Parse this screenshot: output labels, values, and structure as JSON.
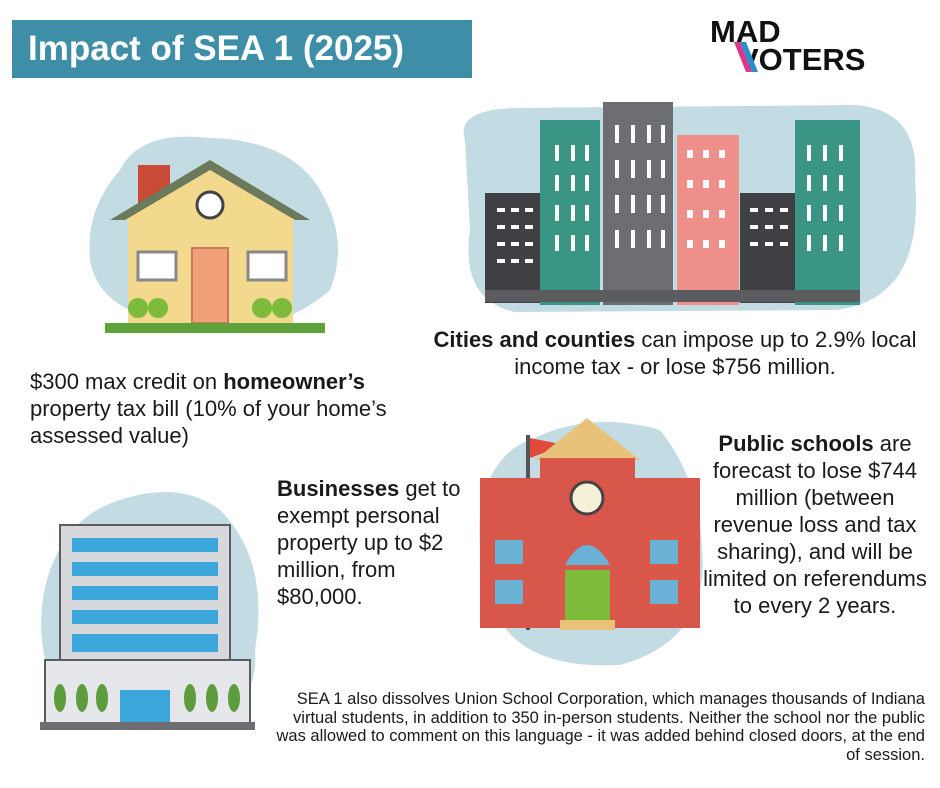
{
  "title": "Impact of SEA 1 (2025)",
  "logo": {
    "line1": "MAD",
    "line2": "VOTERS"
  },
  "cities": {
    "bold": "Cities and counties",
    "rest": " can impose up to 2.9% local income tax - or lose $756 million."
  },
  "homeowner": {
    "pre": "$300 max credit on ",
    "bold": "homeowner’s",
    "rest": " property tax bill (10% of your home’s assessed value)"
  },
  "businesses": {
    "bold": "Businesses",
    "rest": " get to exempt personal property up to $2 million, from $80,000."
  },
  "schools": {
    "bold": "Public schools",
    "rest": " are forecast to lose $744 million (between revenue loss and tax sharing), and will be limited on referendums to every 2 years."
  },
  "footer": "SEA 1 also dissolves Union School Corporation, which manages thousands of Indiana virtual students, in addition to 350 in-person students. Neither the school nor the public was allowed to comment on this language - it was added behind closed doors, at the end of session.",
  "colors": {
    "title_bg": "#3f8ea8",
    "blob": "#c3dbe2",
    "logo_pink": "#e0368a",
    "logo_blue": "#2a8ec9"
  }
}
